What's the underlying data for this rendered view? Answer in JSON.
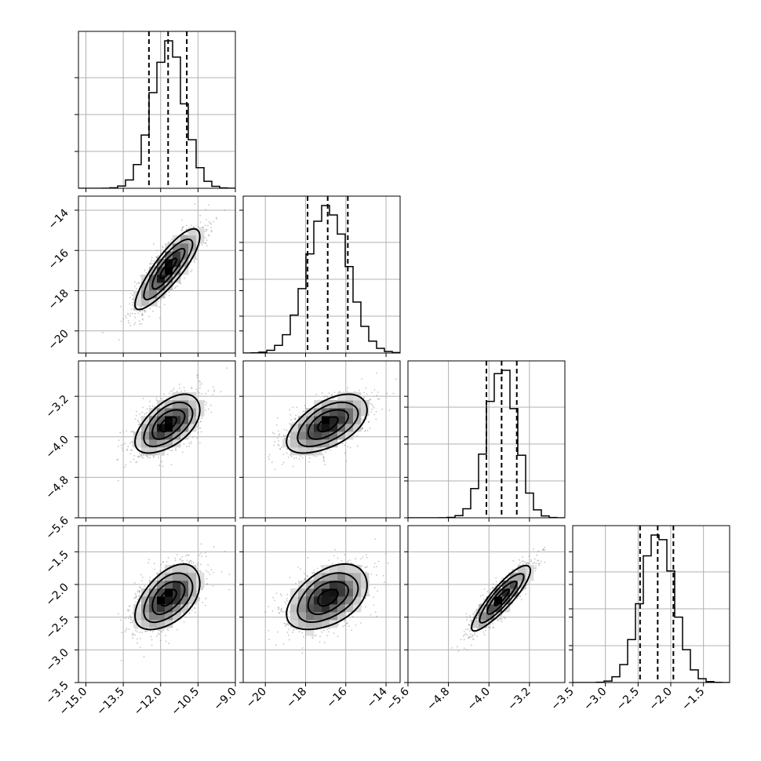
{
  "chart_data": {
    "type": "corner",
    "n_params": 4,
    "grid": true,
    "params": [
      {
        "mean": -11.7,
        "sd": 0.65,
        "range": [
          -15.3,
          -9.0
        ],
        "ticks": [
          -15.0,
          -13.5,
          -12.0,
          -10.5,
          -9.0
        ],
        "tick_labels": [
          "−15.0",
          "−13.5",
          "−12.0",
          "−10.5",
          "−9.0"
        ],
        "quantiles": [
          -12.47,
          -11.7,
          -10.95
        ]
      },
      {
        "mean": -16.9,
        "sd": 1.0,
        "range": [
          -21.1,
          -13.3
        ],
        "ticks": [
          -20,
          -18,
          -16,
          -14
        ],
        "tick_labels": [
          "−20",
          "−18",
          "−16",
          "−14"
        ],
        "quantiles": [
          -17.9,
          -16.9,
          -15.9
        ]
      },
      {
        "mean": -3.75,
        "sd": 0.29,
        "range": [
          -5.6,
          -2.5
        ],
        "ticks": [
          -5.6,
          -4.8,
          -4.0,
          -3.2
        ],
        "tick_labels": [
          "−5.6",
          "−4.8",
          "−4.0",
          "−3.2"
        ],
        "quantiles": [
          -4.05,
          -3.75,
          -3.45
        ]
      },
      {
        "mean": -2.2,
        "sd": 0.25,
        "range": [
          -3.5,
          -1.1
        ],
        "ticks": [
          -3.5,
          -3.0,
          -2.5,
          -2.0,
          -1.5
        ],
        "tick_labels": [
          "−3.5",
          "−3.0",
          "−2.5",
          "−2.0",
          "−1.5"
        ],
        "quantiles": [
          -2.47,
          -2.2,
          -1.96
        ]
      }
    ],
    "correlations": {
      "1-0": 0.85,
      "2-0": 0.55,
      "2-1": 0.55,
      "3-0": 0.5,
      "3-1": 0.45,
      "3-2": 0.88
    },
    "y_tick_rows": [
      {
        "ticks": [
          -20,
          -18,
          -16,
          -14
        ],
        "tick_labels": [
          "−20",
          "−18",
          "−16",
          "−14"
        ]
      },
      {
        "ticks": [
          -5.6,
          -4.8,
          -4.0,
          -3.2
        ],
        "tick_labels": [
          "−5.6",
          "−4.8",
          "−4.0",
          "−3.2"
        ]
      },
      {
        "ticks": [
          -3.5,
          -3.0,
          -2.5,
          -2.0,
          -1.5
        ],
        "tick_labels": [
          "−3.5",
          "−3.0",
          "−2.5",
          "−2.0",
          "−1.5"
        ]
      }
    ]
  }
}
